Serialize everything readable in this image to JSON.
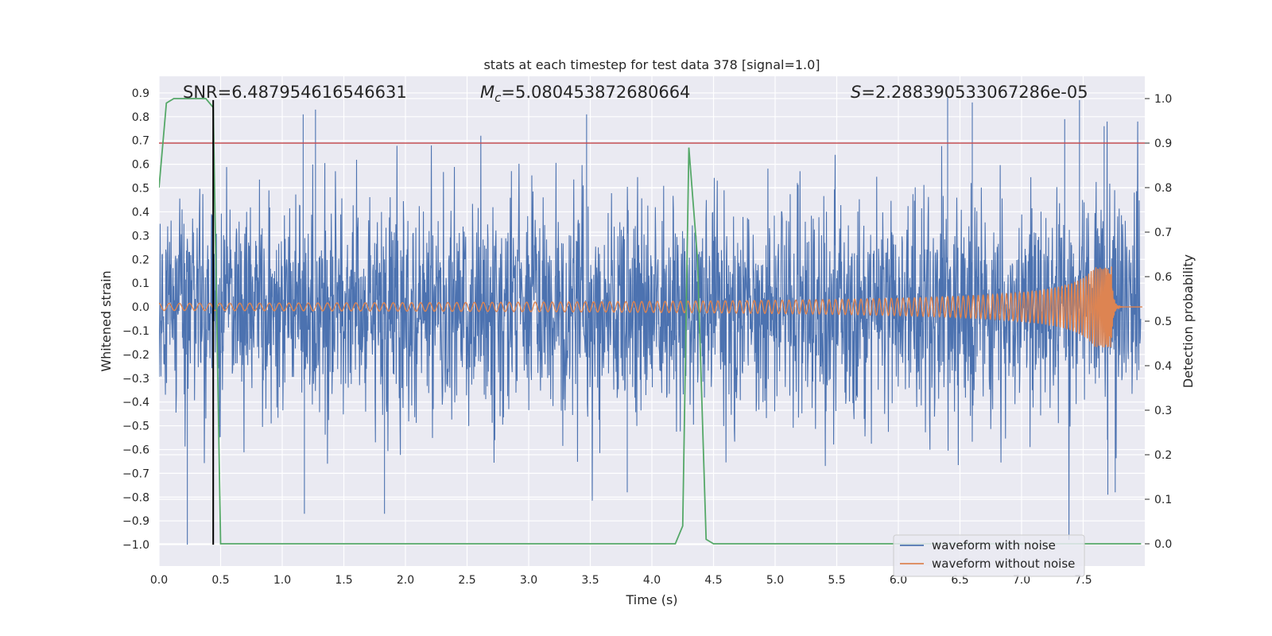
{
  "chart_data": {
    "type": "line",
    "title": "stats at each timestep for test data 378 [signal=1.0]",
    "xlabel": "Time (s)",
    "ylabel": "Whitened strain",
    "y2label": "Detection probability",
    "xlim": [
      0.0,
      8.0
    ],
    "ylim": [
      -1.09,
      0.97
    ],
    "y2lim": [
      -0.05,
      1.05
    ],
    "grid": true,
    "x_ticks": [
      0.0,
      0.5,
      1.0,
      1.5,
      2.0,
      2.5,
      3.0,
      3.5,
      4.0,
      4.5,
      5.0,
      5.5,
      6.0,
      6.5,
      7.0,
      7.5
    ],
    "x_tick_labels": [
      "0.0",
      "0.5",
      "1.0",
      "1.5",
      "2.0",
      "2.5",
      "3.0",
      "3.5",
      "4.0",
      "4.5",
      "5.0",
      "5.5",
      "6.0",
      "6.5",
      "7.0",
      "7.5"
    ],
    "y_ticks": [
      0.9,
      0.8,
      0.7,
      0.6,
      0.5,
      0.4,
      0.3,
      0.2,
      0.1,
      0.0,
      -0.1,
      -0.2,
      -0.3,
      -0.4,
      -0.5,
      -0.6,
      -0.7,
      -0.8,
      -0.9,
      -1.0
    ],
    "y_tick_labels": [
      "0.9",
      "0.8",
      "0.7",
      "0.6",
      "0.5",
      "0.4",
      "0.3",
      "0.2",
      "0.1",
      "0.0",
      "−0.1",
      "−0.2",
      "−0.3",
      "−0.4",
      "−0.5",
      "−0.6",
      "−0.7",
      "−0.8",
      "−0.9",
      "−1.0"
    ],
    "y2_ticks": [
      1.0,
      0.9,
      0.8,
      0.7,
      0.6,
      0.5,
      0.4,
      0.3,
      0.2,
      0.1,
      0.0
    ],
    "y2_tick_labels": [
      "1.0",
      "0.9",
      "0.8",
      "0.7",
      "0.6",
      "0.5",
      "0.4",
      "0.3",
      "0.2",
      "0.1",
      "0.0"
    ],
    "annotations": {
      "snr": "SNR=6.487954616546631",
      "mc_symbol": "M",
      "mc_sub": "c",
      "mc_value": "=5.080453872680664",
      "s_symbol": "S",
      "s_value": "=2.288390533067286e-05"
    },
    "legend": {
      "position": "lower-right",
      "entries": [
        "waveform with noise",
        "waveform without noise"
      ]
    },
    "colors": {
      "noise": "#4c72b0",
      "clean": "#dd8452",
      "probability": "#55a868",
      "threshold": "#c44e52",
      "marker": "#000000",
      "background": "#eaeaf2",
      "grid": "#ffffff"
    },
    "series": [
      {
        "name": "waveform with noise",
        "axis": "left",
        "kind": "noise",
        "envelope_typical": 0.42,
        "peaks": [
          {
            "x": 1.17,
            "y": 0.81
          },
          {
            "x": 1.27,
            "y": 0.83
          },
          {
            "x": 3.47,
            "y": 0.81
          },
          {
            "x": 6.4,
            "y": 0.88
          },
          {
            "x": 6.6,
            "y": 0.86
          },
          {
            "x": 7.47,
            "y": 0.87
          },
          {
            "x": 7.35,
            "y": 0.79
          },
          {
            "x": 7.67,
            "y": 0.76
          },
          {
            "x": 0.23,
            "y": -1.0
          },
          {
            "x": 1.18,
            "y": -0.87
          },
          {
            "x": 1.83,
            "y": -0.87
          },
          {
            "x": 3.8,
            "y": -0.78
          },
          {
            "x": 7.7,
            "y": -0.79
          },
          {
            "x": 7.76,
            "y": -0.78
          }
        ]
      },
      {
        "name": "waveform without noise",
        "axis": "left",
        "kind": "chirp",
        "merger_time": 7.73,
        "merger_peak": 0.17,
        "merger_trough": -0.13,
        "initial_amplitude": 0.015
      },
      {
        "name": "detection probability",
        "axis": "right",
        "x": [
          0.0,
          0.06,
          0.12,
          0.2,
          0.3,
          0.38,
          0.44,
          0.5,
          0.6,
          1.0,
          2.0,
          3.0,
          4.0,
          4.19,
          4.25,
          4.3,
          4.37,
          4.44,
          4.5,
          5.0,
          6.0,
          7.0,
          7.97
        ],
        "y": [
          0.8,
          0.99,
          1.0,
          1.0,
          1.0,
          1.0,
          0.98,
          0.0,
          0.0,
          0.0,
          0.0,
          0.0,
          0.0,
          0.0,
          0.04,
          0.89,
          0.64,
          0.01,
          0.0,
          0.0,
          0.0,
          0.0,
          0.0
        ]
      }
    ],
    "threshold": {
      "axis": "right",
      "y": 0.9
    },
    "vertical_marker": {
      "x": 0.44,
      "y_from": -1.0,
      "y_to": 0.87
    }
  }
}
